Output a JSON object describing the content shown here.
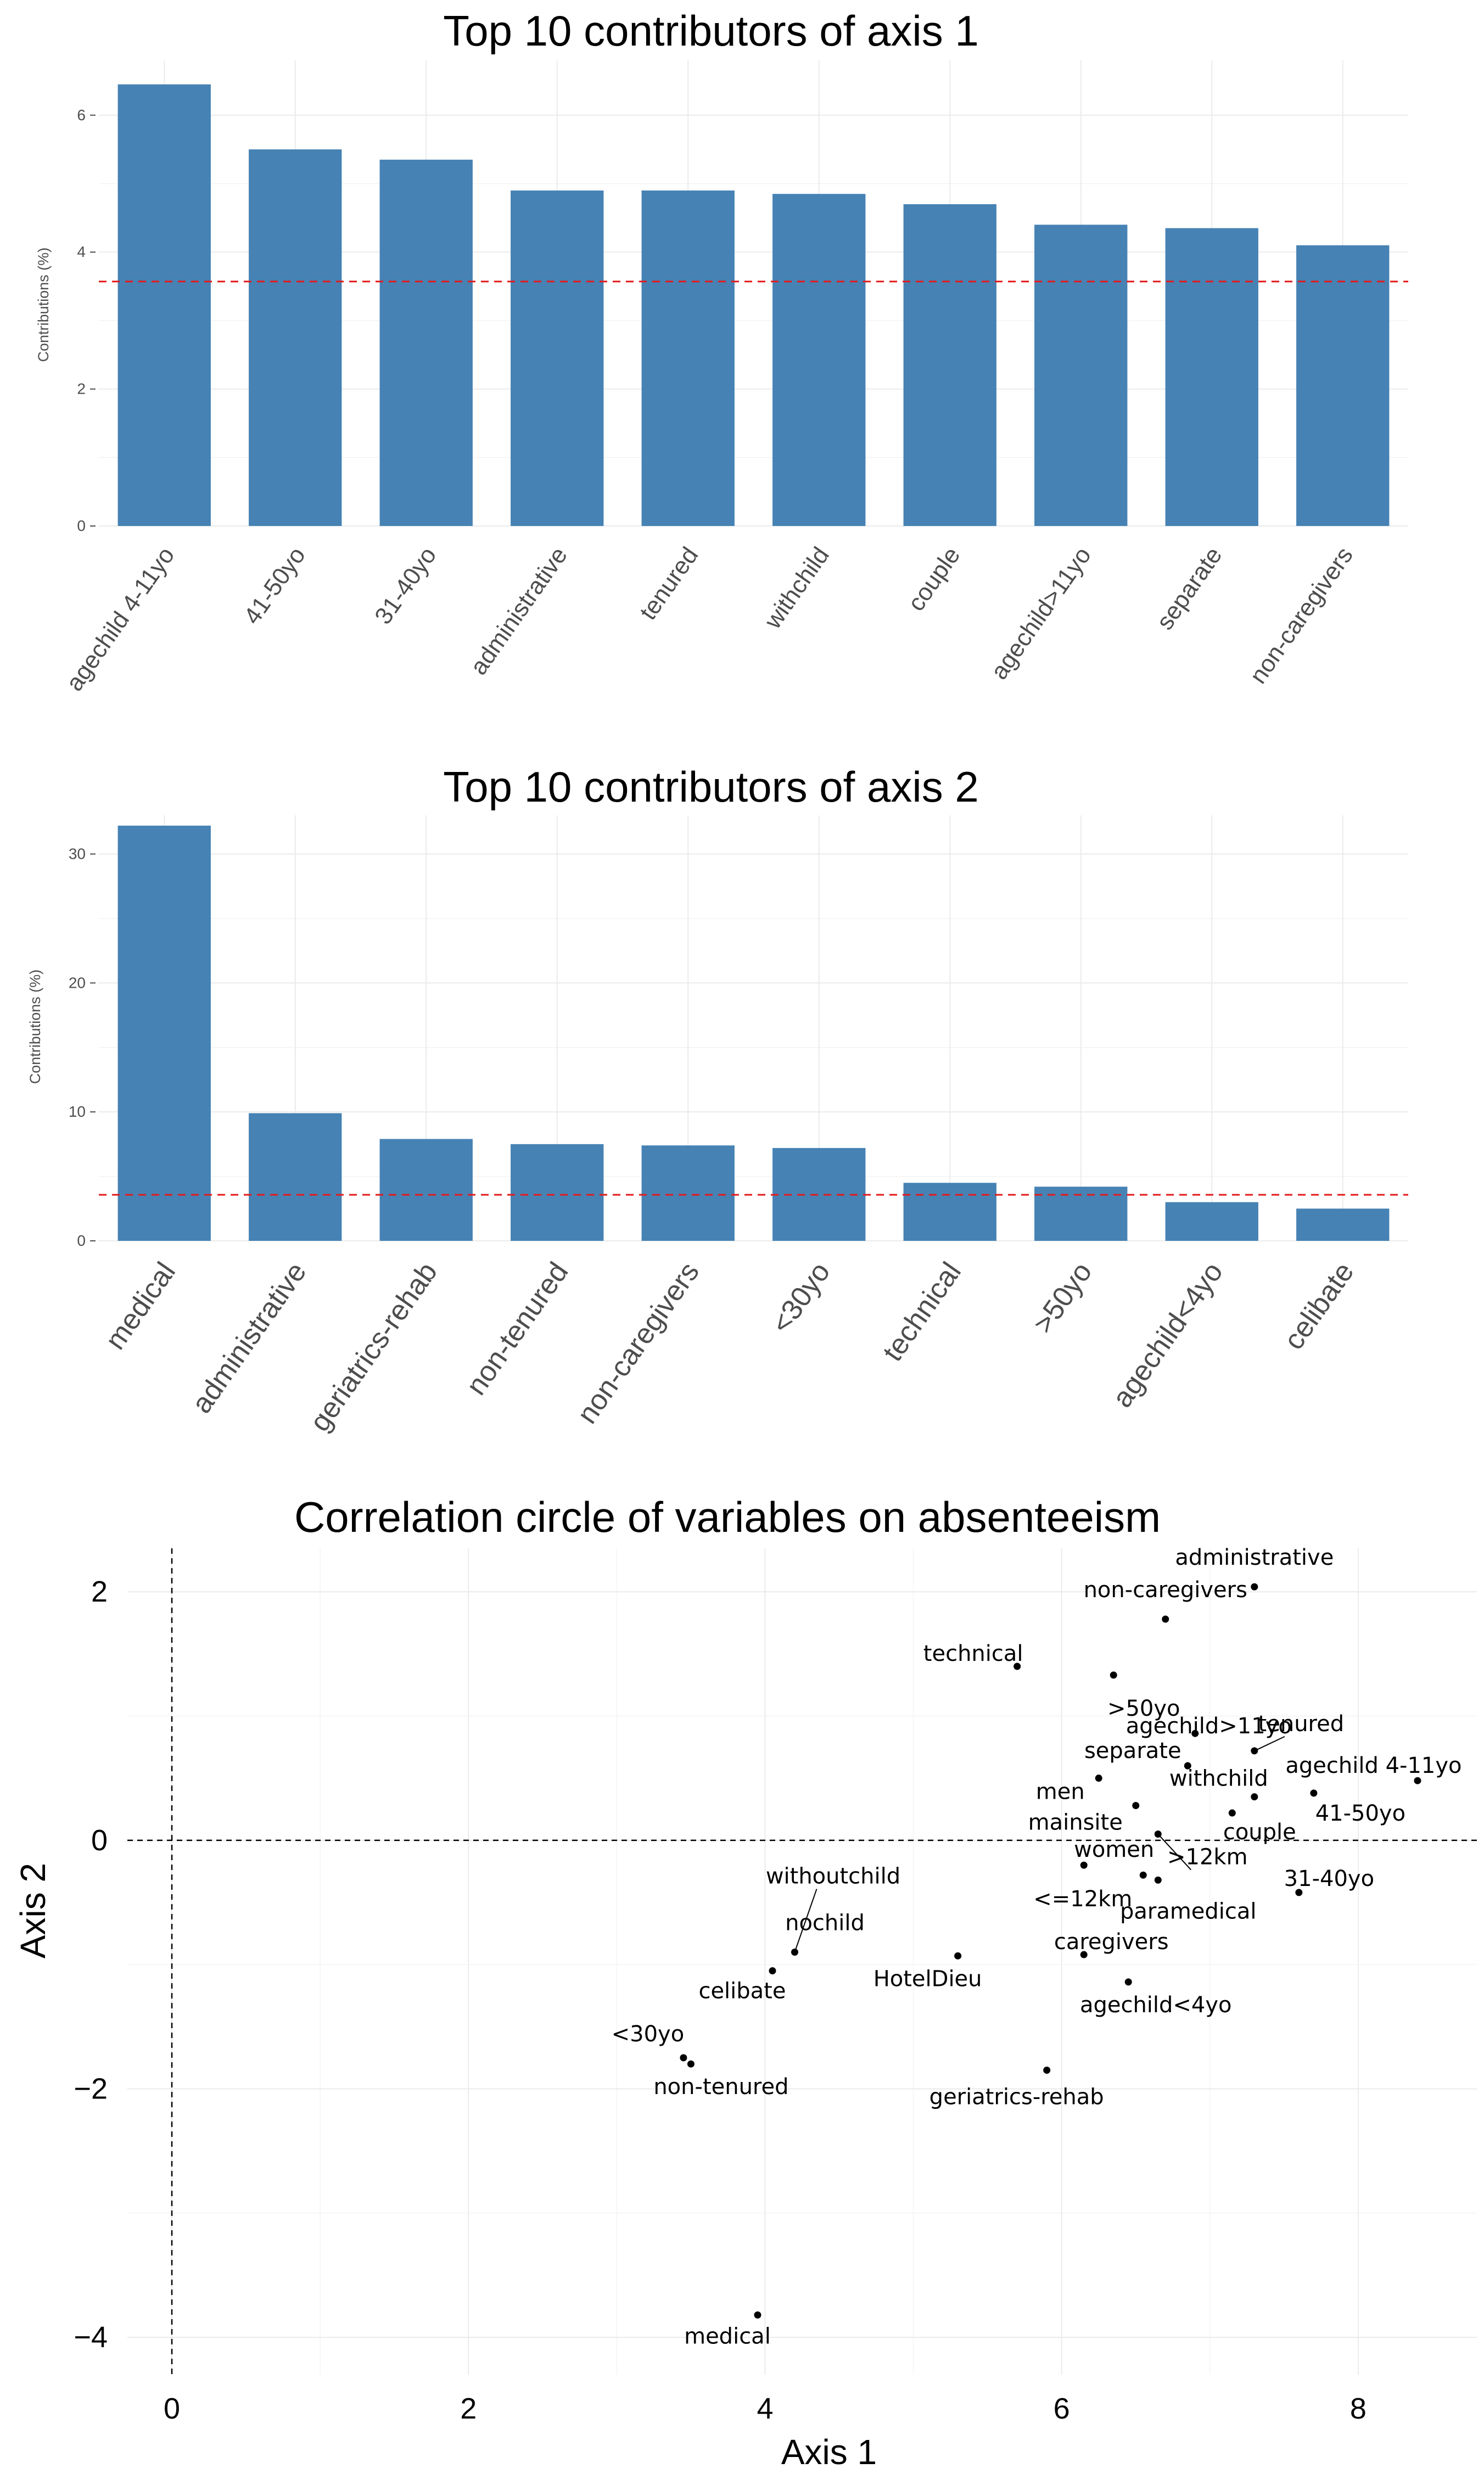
{
  "chart_data": [
    {
      "type": "bar",
      "title": "Top 10 contributors of axis 1",
      "xlabel": "",
      "ylabel": "Contributions (%)",
      "categories": [
        "agechild 4-11yo",
        "41-50yo",
        "31-40yo",
        "administrative",
        "tenured",
        "withchild",
        "couple",
        "agechild>11yo",
        "separate",
        "non-caregivers"
      ],
      "values": [
        6.45,
        5.5,
        5.35,
        4.9,
        4.9,
        4.85,
        4.7,
        4.4,
        4.35,
        4.1
      ],
      "ylim": [
        0,
        6.8
      ],
      "yticks": [
        0,
        2,
        4,
        6
      ],
      "ytick_labels": [
        "0",
        "2",
        "4",
        "6"
      ],
      "reference_line": 3.57,
      "bar_color": "#4682B4",
      "reference_color": "#E41A1C",
      "grid": true
    },
    {
      "type": "bar",
      "title": "Top 10 contributors of axis 2",
      "xlabel": "",
      "ylabel": "Contributions (%)",
      "categories": [
        "medical",
        "administrative",
        "geriatrics-rehab",
        "non-tenured",
        "non-caregivers",
        "<30yo",
        "technical",
        ">50yo",
        "agechild<4yo",
        "celibate"
      ],
      "values": [
        32.2,
        9.9,
        7.9,
        7.5,
        7.4,
        7.2,
        4.5,
        4.2,
        3.0,
        2.5
      ],
      "ylim": [
        0,
        33
      ],
      "yticks": [
        0,
        10,
        20,
        30
      ],
      "ytick_labels": [
        "0",
        "10",
        "20",
        "30"
      ],
      "reference_line": 3.57,
      "bar_color": "#4682B4",
      "reference_color": "#E41A1C",
      "grid": true
    },
    {
      "type": "scatter",
      "title": "Correlation circle of variables on absenteeism",
      "xlabel": "Axis 1",
      "ylabel": "Axis 2",
      "xlim": [
        -0.3,
        8.8
      ],
      "ylim": [
        -4.3,
        2.35
      ],
      "xticks": [
        0,
        2,
        4,
        6,
        8
      ],
      "xtick_labels": [
        "0",
        "2",
        "4",
        "6",
        "8"
      ],
      "yticks": [
        2,
        0,
        -2,
        -4
      ],
      "ytick_labels": [
        "2",
        "0",
        "−2",
        "−4"
      ],
      "reference_lines": {
        "x": 0,
        "y": 0
      },
      "grid": true,
      "points": [
        {
          "label": "administrative",
          "x": 7.3,
          "y": 2.04
        },
        {
          "label": "non-caregivers",
          "x": 6.7,
          "y": 1.78
        },
        {
          "label": "technical",
          "x": 5.7,
          "y": 1.4
        },
        {
          "label": ">50yo",
          "x": 6.35,
          "y": 1.33
        },
        {
          "label": "agechild>11yo",
          "x": 6.9,
          "y": 0.86
        },
        {
          "label": "tenured",
          "x": 7.3,
          "y": 0.72
        },
        {
          "label": "separate",
          "x": 6.85,
          "y": 0.6
        },
        {
          "label": "agechild 4-11yo",
          "x": 8.4,
          "y": 0.48
        },
        {
          "label": "men",
          "x": 6.25,
          "y": 0.5
        },
        {
          "label": "withchild",
          "x": 7.3,
          "y": 0.35
        },
        {
          "label": "41-50yo",
          "x": 7.7,
          "y": 0.38
        },
        {
          "label": "mainsite",
          "x": 6.5,
          "y": 0.28
        },
        {
          "label": "couple",
          "x": 7.15,
          "y": 0.22
        },
        {
          "label": "women",
          "x": 6.15,
          "y": -0.2
        },
        {
          "label": ">12km",
          "x": 6.65,
          "y": 0.05
        },
        {
          "label": "<=12km",
          "x": 6.55,
          "y": -0.28
        },
        {
          "label": "paramedical",
          "x": 6.65,
          "y": -0.32
        },
        {
          "label": "31-40yo",
          "x": 7.6,
          "y": -0.42
        },
        {
          "label": "withoutchild",
          "x": 4.2,
          "y": -0.9
        },
        {
          "label": "nochild",
          "x": 4.2,
          "y": -0.9
        },
        {
          "label": "celibate",
          "x": 4.05,
          "y": -1.05
        },
        {
          "label": "HotelDieu",
          "x": 5.3,
          "y": -0.93
        },
        {
          "label": "caregivers",
          "x": 6.15,
          "y": -0.92
        },
        {
          "label": "agechild<4yo",
          "x": 6.45,
          "y": -1.14
        },
        {
          "label": "<30yo",
          "x": 3.45,
          "y": -1.75
        },
        {
          "label": "non-tenured",
          "x": 3.5,
          "y": -1.8
        },
        {
          "label": "geriatrics-rehab",
          "x": 5.9,
          "y": -1.85
        },
        {
          "label": "medical",
          "x": 3.95,
          "y": -3.82
        }
      ]
    }
  ]
}
